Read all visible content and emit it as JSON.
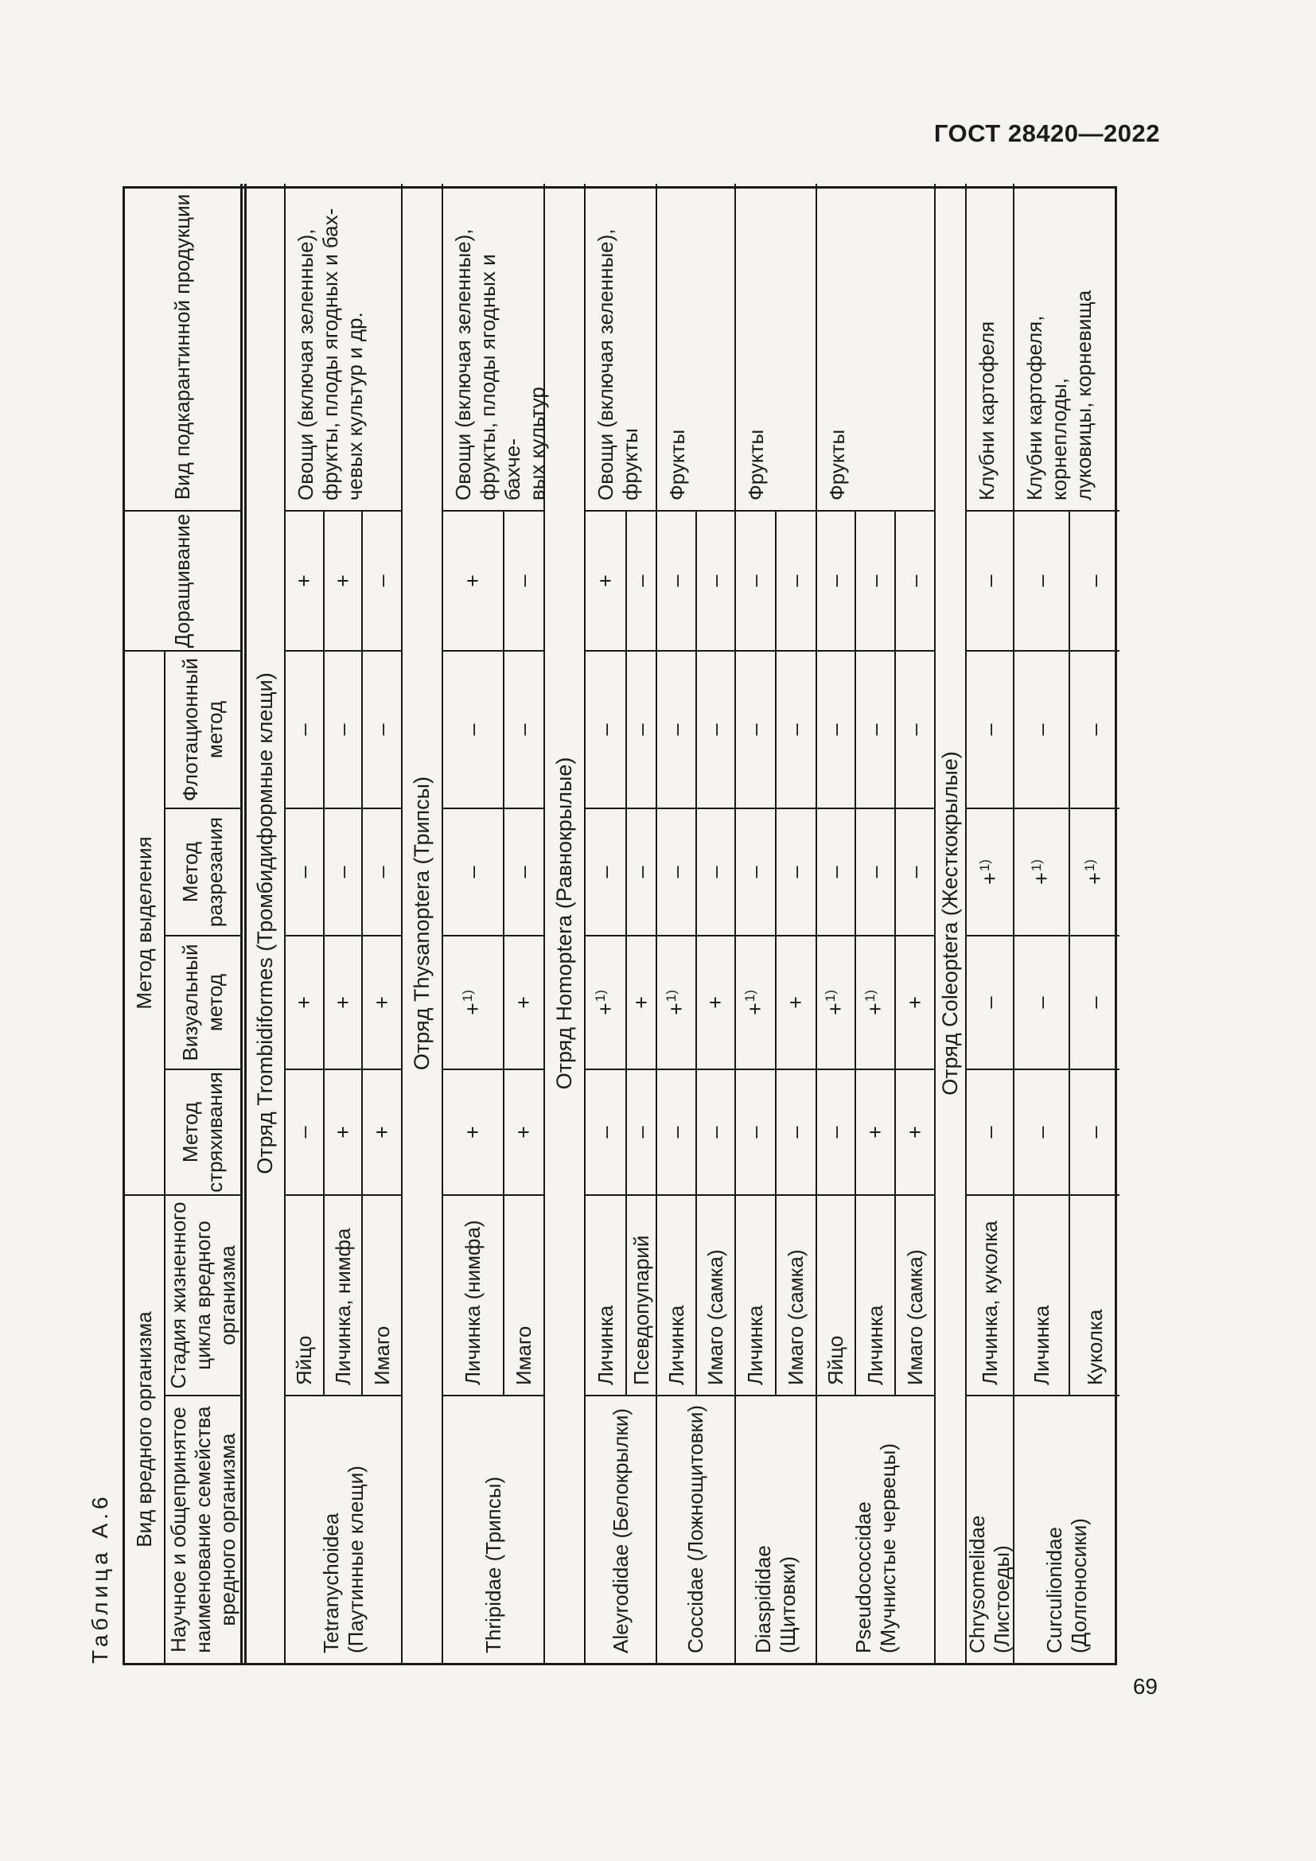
{
  "page": {
    "header": "ГОСТ 28420—2022",
    "page_number": "69",
    "table_label": "Таблица А.6"
  },
  "table": {
    "headers": {
      "pest": "Вид вредного организма",
      "family": "Научное и общепринятое\nнаименование семейства\nвредного организма",
      "stage": "Стадия жизненного\nцикла вредного\nорганизма",
      "method": "Метод выделения",
      "shaking": "Метод\nстряхивания",
      "visual": "Визуальный\nметод",
      "cutting": "Метод\nразрезания",
      "flotation": "Флотационный\nметод",
      "rearing": "Доращивание",
      "product": "Вид подкарантинной продукции"
    },
    "sections": [
      {
        "title": "Отряд Trombidiformes (Тромбидиформные клещи)",
        "groups": [
          {
            "family": "Tetranychoidea\n(Паутинные клещи)",
            "product": "Овощи (включая зеленные),\nфрукты, плоды ягодных и бах-\nчевых культур и др.",
            "rows": [
              {
                "stage": "Яйцо",
                "shaking": "–",
                "visual": "+",
                "cutting": "–",
                "flotation": "–",
                "rearing": "+"
              },
              {
                "stage": "Личинка, нимфа",
                "shaking": "+",
                "visual": "+",
                "cutting": "–",
                "flotation": "–",
                "rearing": "+"
              },
              {
                "stage": "Имаго",
                "shaking": "+",
                "visual": "+",
                "cutting": "–",
                "flotation": "–",
                "rearing": "–"
              }
            ]
          }
        ]
      },
      {
        "title": "Отряд Thysanoptera (Трипсы)",
        "groups": [
          {
            "family": "Thripidae (Трипсы)",
            "product": "Овощи  (включая  зеленные),\nфрукты, плоды ягодных и бахче-\nвых культур",
            "rows": [
              {
                "stage": "Личинка (нимфа)",
                "shaking": "+",
                "visual": "+1)",
                "cutting": "–",
                "flotation": "–",
                "rearing": "+"
              },
              {
                "stage": "Имаго",
                "shaking": "+",
                "visual": "+",
                "cutting": "–",
                "flotation": "–",
                "rearing": "–"
              }
            ]
          }
        ]
      },
      {
        "title": "Отряд Homoptera (Равнокрылые)",
        "groups": [
          {
            "family": "Aleyrodidae (Белокрылки)",
            "product": "Овощи (включая зеленные),\nфрукты",
            "rows": [
              {
                "stage": "Личинка",
                "shaking": "–",
                "visual": "+1)",
                "cutting": "–",
                "flotation": "–",
                "rearing": "+"
              },
              {
                "stage": "Псевдопупарий",
                "shaking": "–",
                "visual": "+",
                "cutting": "–",
                "flotation": "–",
                "rearing": "–"
              }
            ]
          },
          {
            "family": "Coccidae (Ложнощитовки)",
            "product": "Фрукты",
            "rows": [
              {
                "stage": "Личинка",
                "shaking": "–",
                "visual": "+1)",
                "cutting": "–",
                "flotation": "–",
                "rearing": "–"
              },
              {
                "stage": "Имаго (самка)",
                "shaking": "–",
                "visual": "+",
                "cutting": "–",
                "flotation": "–",
                "rearing": "–"
              }
            ]
          },
          {
            "family": "Diaspididae\n(Щитовки)",
            "product": "Фрукты",
            "rows": [
              {
                "stage": "Личинка",
                "shaking": "–",
                "visual": "+1)",
                "cutting": "–",
                "flotation": "–",
                "rearing": "–"
              },
              {
                "stage": "Имаго (самка)",
                "shaking": "–",
                "visual": "+",
                "cutting": "–",
                "flotation": "–",
                "rearing": "–"
              }
            ]
          },
          {
            "family": "Pseudococcidae\n(Мучнистые червецы)",
            "product": "Фрукты",
            "rows": [
              {
                "stage": "Яйцо",
                "shaking": "–",
                "visual": "+1)",
                "cutting": "–",
                "flotation": "–",
                "rearing": "–"
              },
              {
                "stage": "Личинка",
                "shaking": "+",
                "visual": "+1)",
                "cutting": "–",
                "flotation": "–",
                "rearing": "–"
              },
              {
                "stage": "Имаго (самка)",
                "shaking": "+",
                "visual": "+",
                "cutting": "–",
                "flotation": "–",
                "rearing": "–"
              }
            ]
          }
        ]
      },
      {
        "title": "Отряд Coleoptera (Жесткокрылые)",
        "groups": [
          {
            "family": "Chrysomelidae\n(Листоеды)",
            "product": "Клубни картофеля",
            "rows": [
              {
                "stage": "Личинка, куколка",
                "shaking": "–",
                "visual": "–",
                "cutting": "+1)",
                "flotation": "–",
                "rearing": "–"
              }
            ]
          },
          {
            "family": "Curculionidae\n(Долгоносики)",
            "product": "Клубни картофеля, корнеплоды,\nлуковицы, корневища",
            "rows": [
              {
                "stage": "Личинка",
                "shaking": "–",
                "visual": "–",
                "cutting": "+1)",
                "flotation": "–",
                "rearing": "–"
              },
              {
                "stage": "Куколка",
                "shaking": "–",
                "visual": "–",
                "cutting": "+1)",
                "flotation": "–",
                "rearing": "–"
              }
            ]
          }
        ]
      }
    ]
  }
}
